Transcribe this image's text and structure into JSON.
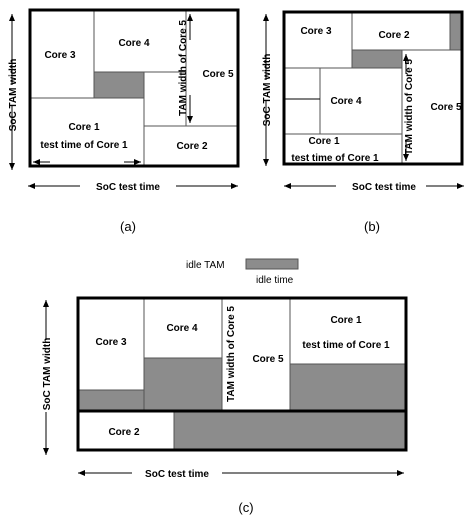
{
  "colors": {
    "idle_fill": "#8c8c8c",
    "frame": "#000000",
    "background": "#ffffff"
  },
  "legend": {
    "idle_tam": "idle TAM",
    "idle_time": "idle time"
  },
  "diagram_a": {
    "caption": "(a)",
    "y_axis": "SoC TAM width",
    "x_axis": "SoC test time",
    "core1": "Core 1",
    "core1_time": "test time of Core 1",
    "core2": "Core 2",
    "core3": "Core 3",
    "core4": "Core 4",
    "core5": "Core 5",
    "core5_width": "TAM width of Core 5"
  },
  "diagram_b": {
    "caption": "(b)",
    "y_axis": "SoC TAM width",
    "x_axis": "SoC test time",
    "core1": "Core 1",
    "core1_time": "test time of Core 1",
    "core2": "Core 2",
    "core3": "Core 3",
    "core4": "Core 4",
    "core5": "Core 5",
    "core5_width": "TAM width of Core 5"
  },
  "diagram_c": {
    "caption": "(c)",
    "y_axis": "SoC TAM width",
    "x_axis": "SoC test time",
    "core1": "Core 1",
    "core1_time": "test time of Core 1",
    "core2": "Core 2",
    "core3": "Core 3",
    "core4": "Core 4",
    "core5": "Core 5",
    "core5_width": "TAM width of Core 5"
  }
}
